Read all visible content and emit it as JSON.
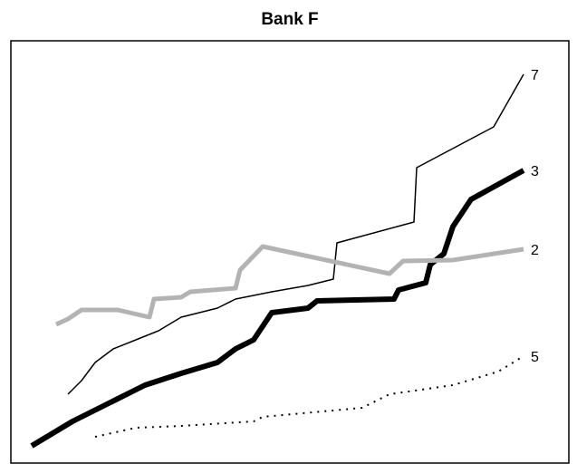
{
  "chart_data": {
    "type": "line",
    "title": "Bank F",
    "xlim": [
      0,
      616
    ],
    "ylim": [
      0,
      467
    ],
    "grid": false,
    "series": [
      {
        "name": "7",
        "color": "#000000",
        "width": 1.5,
        "dash": "none",
        "x": [
          63,
          78,
          93,
          113,
          138,
          163,
          188,
          228,
          248,
          288,
          328,
          356,
          360,
          445,
          448,
          533,
          566
        ],
        "values": [
          77,
          92,
          112,
          127,
          137,
          147,
          162,
          172,
          182,
          190,
          197,
          204,
          244,
          267,
          327,
          372,
          430
        ]
      },
      {
        "name": "3",
        "color": "#000000",
        "width": 6,
        "dash": "none",
        "x": [
          23,
          68,
          108,
          148,
          188,
          228,
          248,
          268,
          278,
          288,
          328,
          338,
          423,
          428,
          458,
          463,
          478,
          488,
          508,
          566
        ],
        "values": [
          20,
          47,
          67,
          87,
          100,
          112,
          127,
          137,
          152,
          167,
          172,
          180,
          182,
          192,
          200,
          220,
          232,
          262,
          292,
          324
        ]
      },
      {
        "name": "2",
        "color": "#b3b3b3",
        "width": 5,
        "dash": "none",
        "x": [
          50,
          63,
          78,
          118,
          153,
          158,
          188,
          198,
          248,
          253,
          278,
          418,
          433,
          488,
          566
        ],
        "values": [
          154,
          160,
          170,
          170,
          162,
          182,
          184,
          190,
          194,
          214,
          240,
          210,
          224,
          225,
          237
        ]
      },
      {
        "name": "5",
        "color": "#000000",
        "width": 2,
        "dash": "2 6",
        "x": [
          93,
          138,
          188,
          268,
          278,
          388,
          418,
          488,
          538,
          566
        ],
        "values": [
          30,
          40,
          42,
          47,
          52,
          62,
          77,
          87,
          102,
          119
        ]
      }
    ]
  }
}
